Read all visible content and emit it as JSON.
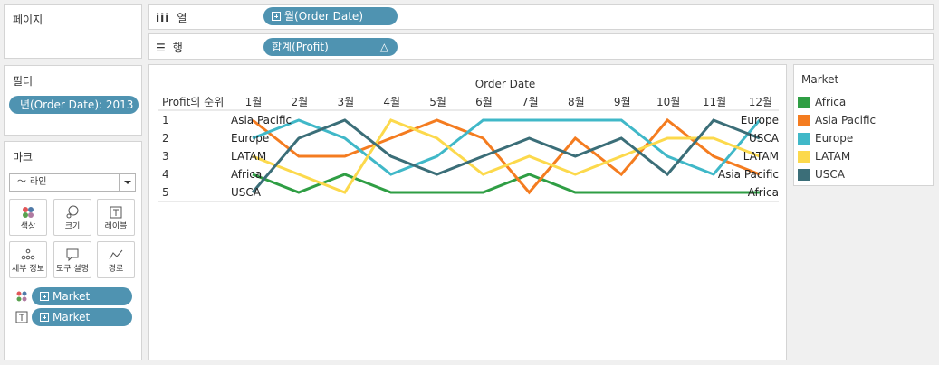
{
  "shelves": {
    "pages": {
      "title": "페이지"
    },
    "columns": {
      "label": "열",
      "pill": "월(Order Date)"
    },
    "rows": {
      "label": "행",
      "pill": "합계(Profit)",
      "pill_badge": "△"
    }
  },
  "filters": {
    "title": "필터",
    "pill": "년(Order Date): 2013"
  },
  "marks": {
    "title": "마크",
    "type": "라인",
    "buttons": [
      {
        "name": "color",
        "label": "색상"
      },
      {
        "name": "size",
        "label": "크기"
      },
      {
        "name": "label",
        "label": "레이블"
      },
      {
        "name": "detail",
        "label": "세부 정보"
      },
      {
        "name": "tooltip",
        "label": "도구 설명"
      },
      {
        "name": "path",
        "label": "경로"
      }
    ],
    "fields": [
      "Market",
      "Market"
    ]
  },
  "legend": {
    "title": "Market",
    "items": [
      {
        "name": "Africa",
        "color": "#2f9e44"
      },
      {
        "name": "Asia Pacific",
        "color": "#f47c20"
      },
      {
        "name": "Europe",
        "color": "#40b8c8"
      },
      {
        "name": "LATAM",
        "color": "#fcd94c"
      },
      {
        "name": "USCA",
        "color": "#3b6e78"
      }
    ]
  },
  "chart_data": {
    "type": "line",
    "title": "Order Date",
    "row_header": "Profit의 순위",
    "categories": [
      "1월",
      "2월",
      "3월",
      "4월",
      "5월",
      "6월",
      "7월",
      "8월",
      "9월",
      "10월",
      "11월",
      "12월"
    ],
    "rank_labels": [
      "1",
      "2",
      "3",
      "4",
      "5"
    ],
    "series": [
      {
        "name": "Africa",
        "color": "#2f9e44",
        "values": [
          4,
          5,
          4,
          5,
          5,
          5,
          4,
          5,
          5,
          5,
          5,
          5
        ]
      },
      {
        "name": "Asia Pacific",
        "color": "#f47c20",
        "values": [
          1,
          3,
          3,
          2,
          1,
          2,
          5,
          2,
          4,
          1,
          3,
          4
        ]
      },
      {
        "name": "Europe",
        "color": "#40b8c8",
        "values": [
          2,
          1,
          2,
          4,
          3,
          1,
          1,
          1,
          1,
          3,
          4,
          1
        ]
      },
      {
        "name": "LATAM",
        "color": "#fcd94c",
        "values": [
          3,
          4,
          5,
          1,
          2,
          4,
          3,
          4,
          3,
          2,
          2,
          3
        ]
      },
      {
        "name": "USCA",
        "color": "#3b6e78",
        "values": [
          5,
          2,
          1,
          3,
          4,
          3,
          2,
          3,
          2,
          4,
          1,
          2
        ]
      }
    ],
    "start_labels": [
      "Asia Pacific",
      "Europe",
      "LATAM",
      "Africa",
      "USCA"
    ],
    "end_labels": [
      "Europe",
      "USCA",
      "LATAM",
      "Asia Pacific",
      "Africa"
    ]
  }
}
